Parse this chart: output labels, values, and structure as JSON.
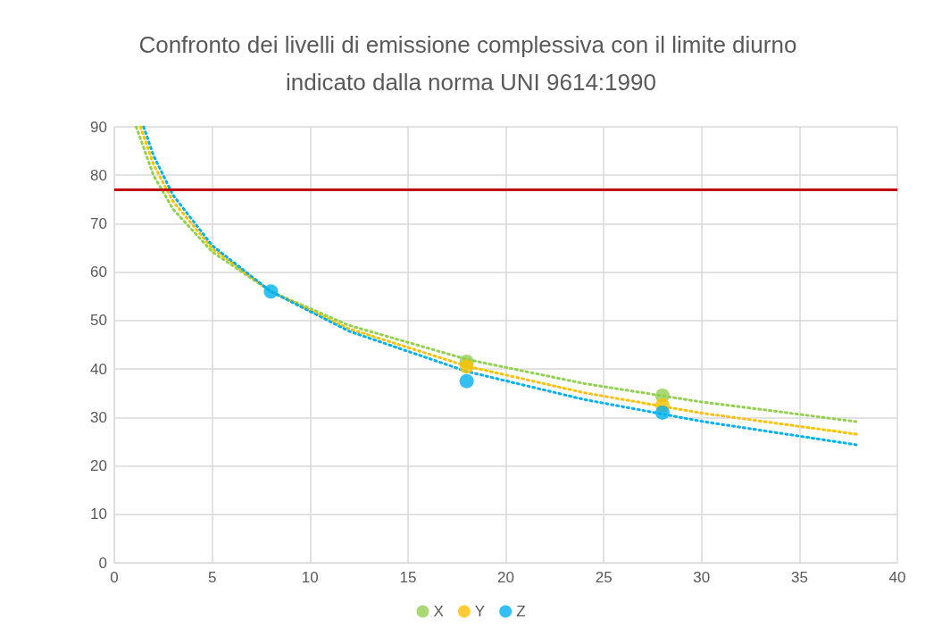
{
  "chart_data": {
    "type": "scatter",
    "title": "Confronto dei livelli di emissione complessiva con il limite diurno indicato dalla norma UNI 9614:1990",
    "xlim": [
      0,
      40
    ],
    "xticks": [
      0,
      5,
      10,
      15,
      20,
      25,
      30,
      35,
      40
    ],
    "ylim": [
      0,
      90
    ],
    "yticks": [
      0,
      10,
      20,
      30,
      40,
      50,
      60,
      70,
      80,
      90
    ],
    "grid": true,
    "legend": "bottom",
    "marker": "circle",
    "ref_lines": [
      {
        "axis": "y",
        "value": 77,
        "color": "#c00000"
      }
    ],
    "series": [
      {
        "name": "X",
        "color": "#92d050",
        "x": [
          18,
          28
        ],
        "values": [
          41.5,
          34.5
        ]
      },
      {
        "name": "Y",
        "color": "#ffc000",
        "x": [
          18,
          28
        ],
        "values": [
          40.5,
          32.5
        ]
      },
      {
        "name": "Z",
        "color": "#00b0f0",
        "x": [
          8,
          18,
          28
        ],
        "values": [
          56,
          37.5,
          31
        ]
      },
      {
        "type": "line",
        "color": "#92d050",
        "line_style": "dotted",
        "marker": "none",
        "x": [
          1.12,
          2,
          3,
          5,
          8,
          12,
          18,
          24,
          30,
          38
        ],
        "values": [
          90,
          80,
          73,
          64.2,
          56,
          49,
          42,
          37,
          33.2,
          29.1
        ]
      },
      {
        "type": "line",
        "color": "#ffc000",
        "line_style": "dotted",
        "marker": "none",
        "x": [
          1.34,
          2,
          3,
          5,
          8,
          12,
          18,
          24,
          30,
          38
        ],
        "values": [
          90,
          82.3,
          74.6,
          64.9,
          56,
          48.3,
          40.6,
          35.1,
          30.9,
          26.5
        ]
      },
      {
        "type": "line",
        "color": "#00b0f0",
        "line_style": "dotted",
        "marker": "none",
        "x": [
          1.5,
          2,
          3,
          5,
          8,
          12,
          18,
          24,
          30,
          38
        ],
        "values": [
          90,
          84.1,
          75.9,
          65.5,
          56,
          47.8,
          39.5,
          33.7,
          29.2,
          24.3
        ]
      }
    ]
  }
}
